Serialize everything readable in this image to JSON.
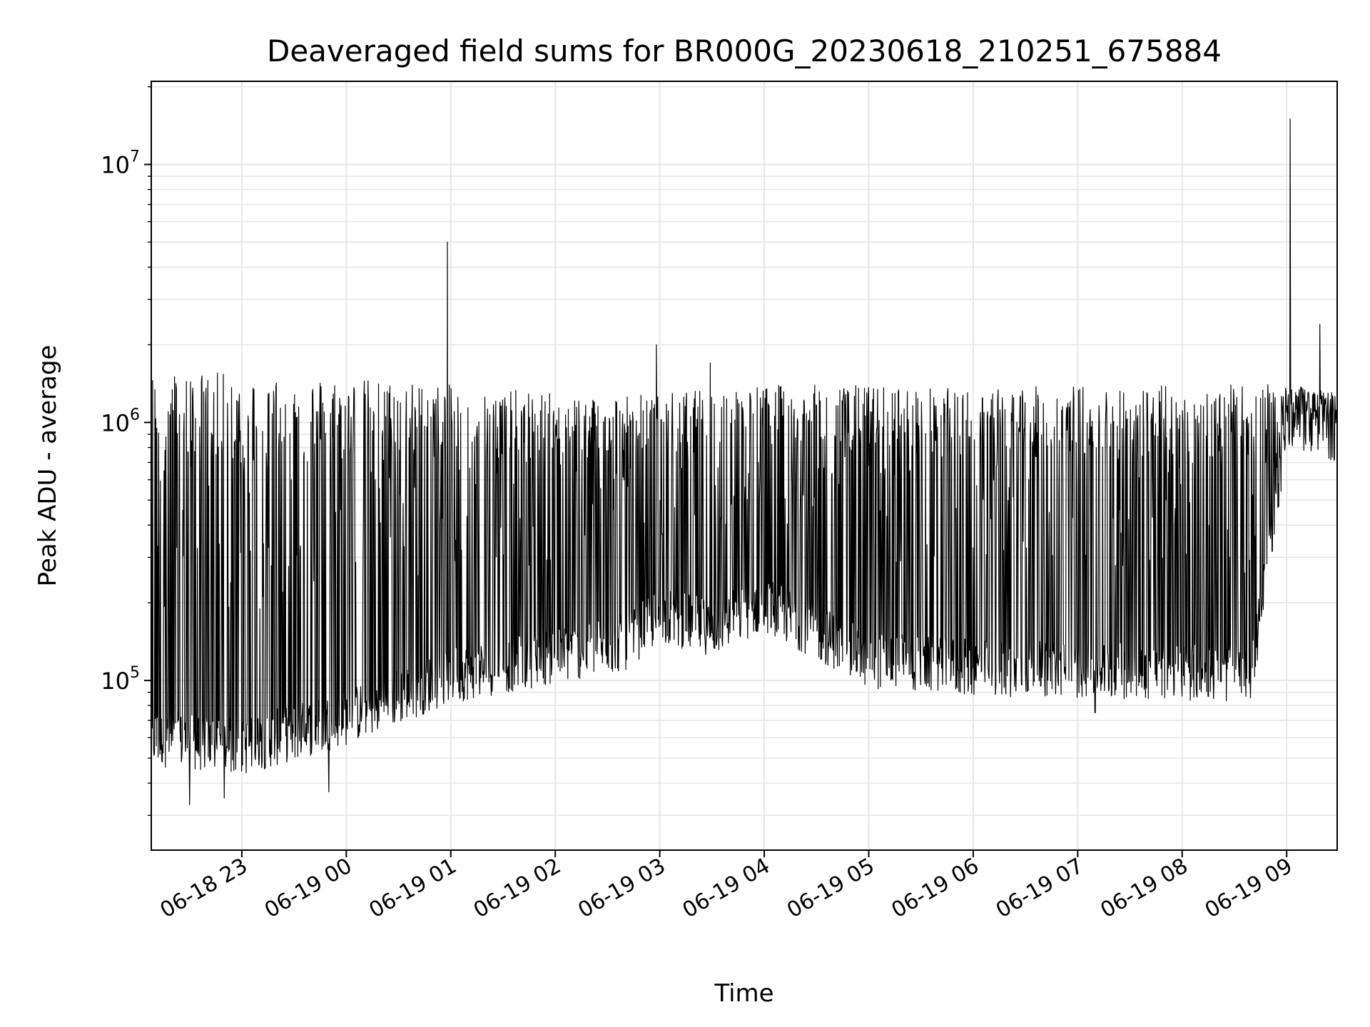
{
  "chart_data": {
    "type": "line",
    "title": "Deaveraged field sums for BR000G_20230618_210251_675884",
    "xlabel": "Time",
    "ylabel": "Peak ADU - average",
    "y_scale": "log",
    "ylim": [
      22000,
      21000000
    ],
    "xlim": [
      "2023-06-18 22:08",
      "2023-06-19 09:29"
    ],
    "x_tick_labels": [
      "06-18 23",
      "06-19 00",
      "06-19 01",
      "06-19 02",
      "06-19 03",
      "06-19 04",
      "06-19 05",
      "06-19 06",
      "06-19 07",
      "06-19 08",
      "06-19 09"
    ],
    "x_tick_times": [
      "2023-06-18 23:00",
      "2023-06-19 00:00",
      "2023-06-19 01:00",
      "2023-06-19 02:00",
      "2023-06-19 03:00",
      "2023-06-19 04:00",
      "2023-06-19 05:00",
      "2023-06-19 06:00",
      "2023-06-19 07:00",
      "2023-06-19 08:00",
      "2023-06-19 09:00"
    ],
    "y_tick_labels": [
      "10",
      "10",
      "10"
    ],
    "y_tick_exponents": [
      "5",
      "6",
      "7"
    ],
    "y_tick_values": [
      100000,
      1000000,
      10000000
    ],
    "grid": true,
    "grid_color": "#e6e6e6",
    "line_color": "#000000",
    "series": [
      {
        "baseline": [
          {
            "x": "2023-06-18 22:08",
            "y": 60000
          },
          {
            "x": "2023-06-18 23:00",
            "y": 55000
          },
          {
            "x": "2023-06-19 00:00",
            "y": 72000
          },
          {
            "x": "2023-06-19 01:00",
            "y": 105000
          },
          {
            "x": "2023-06-19 02:00",
            "y": 125000
          },
          {
            "x": "2023-06-19 02:40",
            "y": 140000
          },
          {
            "x": "2023-06-19 03:00",
            "y": 180000
          },
          {
            "x": "2023-06-19 03:30",
            "y": 160000
          },
          {
            "x": "2023-06-19 04:00",
            "y": 200000
          },
          {
            "x": "2023-06-19 05:00",
            "y": 120000
          },
          {
            "x": "2023-06-19 06:00",
            "y": 112000
          },
          {
            "x": "2023-06-19 07:00",
            "y": 110000
          },
          {
            "x": "2023-06-19 08:00",
            "y": 108000
          },
          {
            "x": "2023-06-19 08:40",
            "y": 105000
          },
          {
            "x": "2023-06-19 09:00",
            "y": 1000000
          },
          {
            "x": "2023-06-19 09:29",
            "y": 900000
          }
        ],
        "upper_envelope": [
          {
            "x": "2023-06-18 22:08",
            "y": 1600000
          },
          {
            "x": "2023-06-19 00:00",
            "y": 1500000
          },
          {
            "x": "2023-06-19 01:00",
            "y": 1400000
          },
          {
            "x": "2023-06-19 02:00",
            "y": 1300000
          },
          {
            "x": "2023-06-19 03:00",
            "y": 1300000
          },
          {
            "x": "2023-06-19 04:00",
            "y": 1400000
          },
          {
            "x": "2023-06-19 05:00",
            "y": 1400000
          },
          {
            "x": "2023-06-19 06:00",
            "y": 1350000
          },
          {
            "x": "2023-06-19 07:00",
            "y": 1400000
          },
          {
            "x": "2023-06-19 08:00",
            "y": 1400000
          },
          {
            "x": "2023-06-19 09:00",
            "y": 1400000
          },
          {
            "x": "2023-06-19 09:29",
            "y": 1300000
          }
        ],
        "peaks": [
          {
            "x": "2023-06-19 00:58",
            "y": 5000000
          },
          {
            "x": "2023-06-19 02:58",
            "y": 2000000
          },
          {
            "x": "2023-06-19 03:29",
            "y": 1700000
          },
          {
            "x": "2023-06-19 09:02",
            "y": 15000000
          },
          {
            "x": "2023-06-19 09:19",
            "y": 2400000
          }
        ],
        "dips": [
          {
            "x": "2023-06-18 22:30",
            "y": 33000
          },
          {
            "x": "2023-06-18 22:50",
            "y": 35000
          },
          {
            "x": "2023-06-18 23:50",
            "y": 37000
          },
          {
            "x": "2023-06-19 07:10",
            "y": 75000
          },
          {
            "x": "2023-06-19 08:00",
            "y": 87000
          }
        ]
      }
    ]
  }
}
